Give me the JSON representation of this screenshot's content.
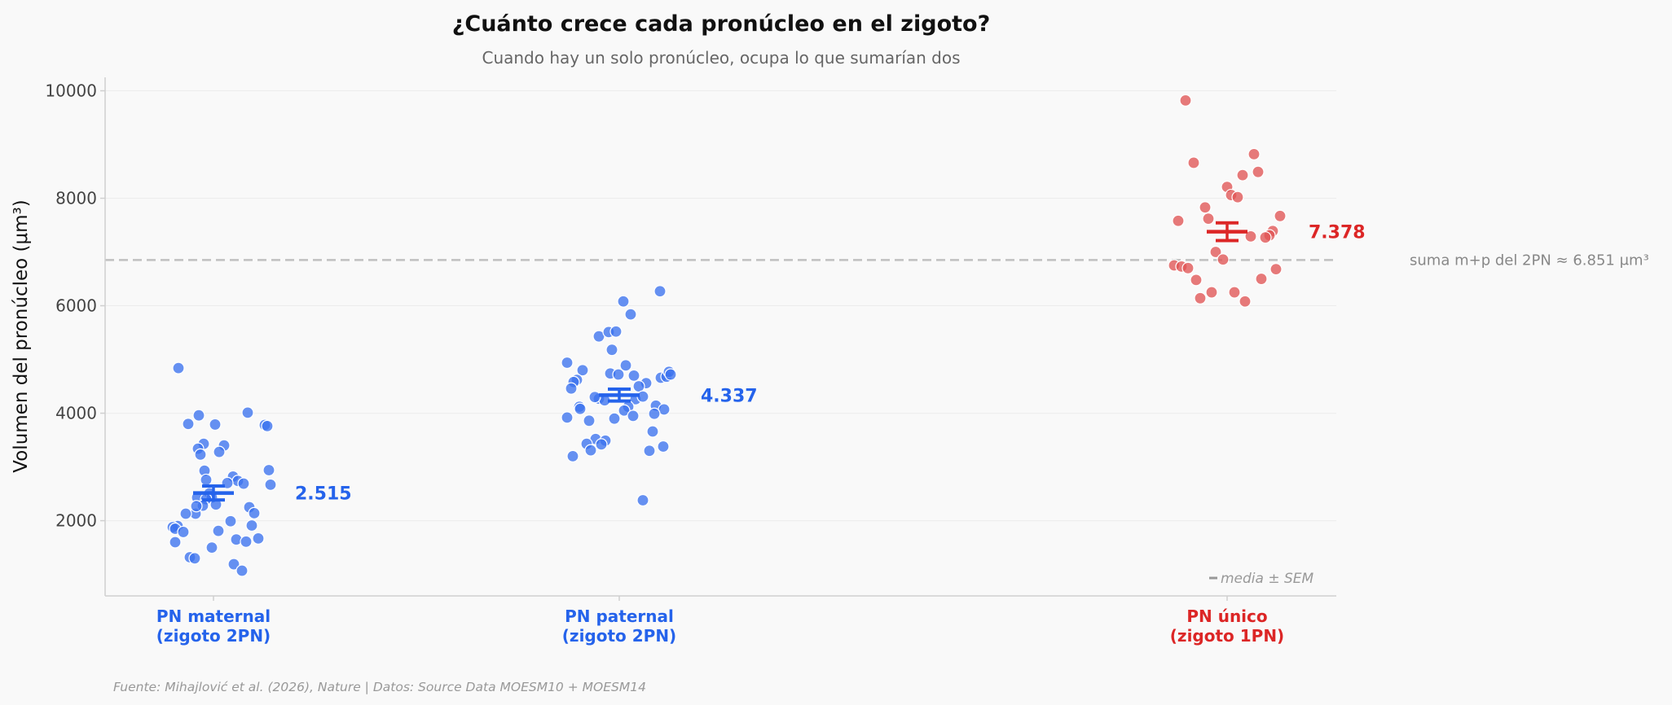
{
  "chart_data": {
    "type": "scatter",
    "title": "¿Cuánto crece cada pronúcleo en el zigoto?",
    "subtitle": "Cuando hay un solo pronúcleo, ocupa lo que sumarían dos",
    "ylabel": "Volumen del pronúcleo (μm³)",
    "ylim": [
      600,
      10250
    ],
    "yticks": [
      {
        "value": 2000,
        "label": "2000"
      },
      {
        "value": 4000,
        "label": "4000"
      },
      {
        "value": 6000,
        "label": "6000"
      },
      {
        "value": 8000,
        "label": "8000"
      },
      {
        "value": 10000,
        "label": "10000"
      }
    ],
    "grid": true,
    "reference_line": {
      "value": 6851,
      "label": "suma m+p del 2PN ≈ 6.851 μm³",
      "color": "#c0c0c0"
    },
    "note": "media ± SEM",
    "source": "Fuente: Mihajlović et al. (2026), Nature | Datos: Source Data MOESM10 + MOESM14",
    "groups": [
      {
        "label_line1": "PN maternal",
        "label_line2": "(zigoto 2PN)",
        "color": "#2563eb",
        "point_color": "#3b72ee",
        "mean": 2515,
        "mean_label": "2.515",
        "sem": 130,
        "points": [
          {
            "dx": -0.43,
            "y": 4840
          },
          {
            "dx": -0.18,
            "y": 3960
          },
          {
            "dx": -0.31,
            "y": 3800
          },
          {
            "dx": 0.02,
            "y": 3790
          },
          {
            "dx": 0.42,
            "y": 4010
          },
          {
            "dx": 0.63,
            "y": 3780
          },
          {
            "dx": 0.66,
            "y": 3760
          },
          {
            "dx": -0.12,
            "y": 3430
          },
          {
            "dx": -0.19,
            "y": 3340
          },
          {
            "dx": -0.16,
            "y": 3230
          },
          {
            "dx": 0.13,
            "y": 3400
          },
          {
            "dx": 0.07,
            "y": 3280
          },
          {
            "dx": -0.11,
            "y": 2930
          },
          {
            "dx": 0.68,
            "y": 2940
          },
          {
            "dx": -0.2,
            "y": 2430
          },
          {
            "dx": -0.22,
            "y": 2130
          },
          {
            "dx": -0.09,
            "y": 2760
          },
          {
            "dx": 0.24,
            "y": 2820
          },
          {
            "dx": 0.3,
            "y": 2740
          },
          {
            "dx": 0.37,
            "y": 2690
          },
          {
            "dx": 0.17,
            "y": 2700
          },
          {
            "dx": 0.7,
            "y": 2670
          },
          {
            "dx": -0.05,
            "y": 2510
          },
          {
            "dx": -0.02,
            "y": 2430
          },
          {
            "dx": -0.09,
            "y": 2400
          },
          {
            "dx": -0.13,
            "y": 2280
          },
          {
            "dx": 0.03,
            "y": 2300
          },
          {
            "dx": -0.21,
            "y": 2270
          },
          {
            "dx": 0.44,
            "y": 2250
          },
          {
            "dx": 0.5,
            "y": 2140
          },
          {
            "dx": -0.34,
            "y": 2130
          },
          {
            "dx": 0.21,
            "y": 1990
          },
          {
            "dx": -0.44,
            "y": 1900
          },
          {
            "dx": -0.5,
            "y": 1880
          },
          {
            "dx": -0.47,
            "y": 1850
          },
          {
            "dx": 0.47,
            "y": 1910
          },
          {
            "dx": -0.37,
            "y": 1790
          },
          {
            "dx": 0.06,
            "y": 1810
          },
          {
            "dx": 0.28,
            "y": 1650
          },
          {
            "dx": 0.4,
            "y": 1610
          },
          {
            "dx": 0.55,
            "y": 1670
          },
          {
            "dx": -0.47,
            "y": 1600
          },
          {
            "dx": -0.02,
            "y": 1500
          },
          {
            "dx": -0.29,
            "y": 1320
          },
          {
            "dx": -0.23,
            "y": 1300
          },
          {
            "dx": 0.25,
            "y": 1190
          },
          {
            "dx": 0.35,
            "y": 1070
          }
        ]
      },
      {
        "label_line1": "PN paternal",
        "label_line2": "(zigoto 2PN)",
        "color": "#2563eb",
        "point_color": "#3b72ee",
        "mean": 4337,
        "mean_label": "4.337",
        "sem": 110,
        "points": [
          {
            "dx": 0.5,
            "y": 6270
          },
          {
            "dx": 0.05,
            "y": 6080
          },
          {
            "dx": 0.14,
            "y": 5840
          },
          {
            "dx": -0.25,
            "y": 5430
          },
          {
            "dx": -0.13,
            "y": 5510
          },
          {
            "dx": -0.04,
            "y": 5520
          },
          {
            "dx": -0.09,
            "y": 5180
          },
          {
            "dx": -0.64,
            "y": 4940
          },
          {
            "dx": -0.45,
            "y": 4800
          },
          {
            "dx": -0.52,
            "y": 4620
          },
          {
            "dx": -0.56,
            "y": 4580
          },
          {
            "dx": -0.59,
            "y": 4460
          },
          {
            "dx": 0.08,
            "y": 4890
          },
          {
            "dx": -0.11,
            "y": 4740
          },
          {
            "dx": -0.01,
            "y": 4720
          },
          {
            "dx": 0.18,
            "y": 4700
          },
          {
            "dx": 0.33,
            "y": 4560
          },
          {
            "dx": 0.24,
            "y": 4500
          },
          {
            "dx": 0.51,
            "y": 4660
          },
          {
            "dx": 0.58,
            "y": 4680
          },
          {
            "dx": 0.61,
            "y": 4770
          },
          {
            "dx": 0.63,
            "y": 4720
          },
          {
            "dx": -0.25,
            "y": 4270
          },
          {
            "dx": -0.18,
            "y": 4240
          },
          {
            "dx": -0.3,
            "y": 4300
          },
          {
            "dx": 0.2,
            "y": 4260
          },
          {
            "dx": 0.29,
            "y": 4310
          },
          {
            "dx": -0.49,
            "y": 4120
          },
          {
            "dx": -0.48,
            "y": 4080
          },
          {
            "dx": 0.11,
            "y": 4120
          },
          {
            "dx": 0.45,
            "y": 4140
          },
          {
            "dx": 0.55,
            "y": 4070
          },
          {
            "dx": 0.06,
            "y": 4050
          },
          {
            "dx": -0.64,
            "y": 3920
          },
          {
            "dx": -0.37,
            "y": 3860
          },
          {
            "dx": -0.06,
            "y": 3900
          },
          {
            "dx": 0.17,
            "y": 3950
          },
          {
            "dx": 0.43,
            "y": 3990
          },
          {
            "dx": 0.41,
            "y": 3660
          },
          {
            "dx": -0.29,
            "y": 3520
          },
          {
            "dx": -0.17,
            "y": 3490
          },
          {
            "dx": -0.4,
            "y": 3430
          },
          {
            "dx": -0.22,
            "y": 3420
          },
          {
            "dx": -0.35,
            "y": 3310
          },
          {
            "dx": -0.57,
            "y": 3200
          },
          {
            "dx": 0.37,
            "y": 3300
          },
          {
            "dx": 0.54,
            "y": 3380
          },
          {
            "dx": 0.29,
            "y": 2380
          }
        ]
      },
      {
        "label_line1": "PN único",
        "label_line2": "(zigoto 1PN)",
        "color": "#dc2626",
        "point_color": "#e05555",
        "mean": 7378,
        "mean_label": "7.378",
        "sem": 165,
        "points": [
          {
            "dx": -0.51,
            "y": 9820
          },
          {
            "dx": -0.41,
            "y": 8660
          },
          {
            "dx": 0.33,
            "y": 8820
          },
          {
            "dx": 0.38,
            "y": 8490
          },
          {
            "dx": 0.19,
            "y": 8430
          },
          {
            "dx": 0.0,
            "y": 8210
          },
          {
            "dx": 0.05,
            "y": 8060
          },
          {
            "dx": 0.13,
            "y": 8020
          },
          {
            "dx": -0.27,
            "y": 7830
          },
          {
            "dx": -0.23,
            "y": 7620
          },
          {
            "dx": -0.6,
            "y": 7580
          },
          {
            "dx": 0.65,
            "y": 7670
          },
          {
            "dx": 0.56,
            "y": 7390
          },
          {
            "dx": 0.52,
            "y": 7310
          },
          {
            "dx": 0.47,
            "y": 7270
          },
          {
            "dx": 0.29,
            "y": 7290
          },
          {
            "dx": -0.14,
            "y": 7000
          },
          {
            "dx": -0.05,
            "y": 6860
          },
          {
            "dx": -0.65,
            "y": 6750
          },
          {
            "dx": -0.56,
            "y": 6730
          },
          {
            "dx": -0.48,
            "y": 6700
          },
          {
            "dx": 0.6,
            "y": 6680
          },
          {
            "dx": -0.38,
            "y": 6480
          },
          {
            "dx": 0.42,
            "y": 6500
          },
          {
            "dx": -0.19,
            "y": 6250
          },
          {
            "dx": 0.09,
            "y": 6250
          },
          {
            "dx": -0.33,
            "y": 6140
          },
          {
            "dx": 0.22,
            "y": 6080
          }
        ]
      }
    ]
  }
}
